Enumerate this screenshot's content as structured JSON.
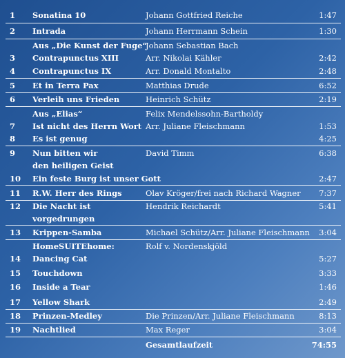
{
  "tracks": [
    {
      "num": "1",
      "title": [
        "Sonatina 10"
      ],
      "composer": [
        "Johann Gottfried Reiche"
      ],
      "time": "1:47"
    },
    {
      "num": "2",
      "title": [
        "Intrada"
      ],
      "composer": [
        "Johann Herrmann Schein"
      ],
      "time": "1:30"
    },
    {
      "num": "3",
      "title": [
        "Aus „Die Kunst der Fuge“",
        "Contrapunctus XIII"
      ],
      "composer": [
        "Johann Sebastian Bach",
        "Arr. Nikolai Kähler"
      ],
      "time": "2:42"
    },
    {
      "num": "4",
      "title": [
        "Contrapunctus IX"
      ],
      "composer": [
        "Arr. Donald Montalto"
      ],
      "time": "2:48"
    },
    {
      "num": "5",
      "title": [
        "Et in Terra Pax"
      ],
      "composer": [
        "Matthias Drude"
      ],
      "time": "6:52"
    },
    {
      "num": "6",
      "title": [
        "Verleih uns Frieden"
      ],
      "composer": [
        "Heinrich Schütz"
      ],
      "time": "2:19"
    },
    {
      "num": "7",
      "title": [
        "Aus „Elias“",
        "Ist nicht des Herrn Wort"
      ],
      "composer": [
        "Felix Mendelssohn-Bartholdy",
        "Arr. Juliane Fleischmann"
      ],
      "time": "1:53"
    },
    {
      "num": "8",
      "title": [
        "Es ist genug"
      ],
      "composer": [],
      "time": "4:25"
    },
    {
      "num": "9",
      "title": [
        "Nun bitten wir",
        "den heiligen Geist"
      ],
      "composer": [
        "David Timm"
      ],
      "time": "6:38"
    },
    {
      "num": "10",
      "title": [
        "Ein feste Burg ist unser Gott"
      ],
      "composer": [],
      "time": "2:47"
    },
    {
      "num": "11",
      "title": [
        "R.W. Herr des Rings"
      ],
      "composer": [
        "Olav Kröger/frei nach Richard Wagner"
      ],
      "time": "7:37"
    },
    {
      "num": "12",
      "title": [
        "Die Nacht ist",
        "vorgedrungen"
      ],
      "composer": [
        "Hendrik Reichardt"
      ],
      "time": "5:41"
    },
    {
      "num": "13",
      "title": [
        "Krippen-Samba"
      ],
      "composer": [
        "Michael Schütz/Arr. Juliane Fleischmann"
      ],
      "time": "3:04"
    },
    {
      "num": "14",
      "title": [
        "HomeSUITEhome:",
        "Dancing Cat"
      ],
      "composer": [
        "Rolf v. Nordenskjöld"
      ],
      "time": "5:27"
    },
    {
      "num": "15",
      "title": [
        "Touchdown"
      ],
      "composer": [],
      "time": "3:33"
    },
    {
      "num": "16",
      "title": [
        "Inside a Tear"
      ],
      "composer": [],
      "time": "1:46"
    },
    {
      "num": "17",
      "title": [
        "Yellow Shark"
      ],
      "composer": [],
      "time": "2:49"
    },
    {
      "num": "18",
      "title": [
        "Prinzen-Medley"
      ],
      "composer": [
        "Die Prinzen/Arr. Juliane Fleischmann"
      ],
      "time": "8:13"
    },
    {
      "num": "19",
      "title": [
        "Nachtlied"
      ],
      "composer": [
        "Max Reger"
      ],
      "time": "3:04"
    }
  ],
  "total": {
    "label": "Gesamtlaufzeit",
    "time": "74:55"
  }
}
